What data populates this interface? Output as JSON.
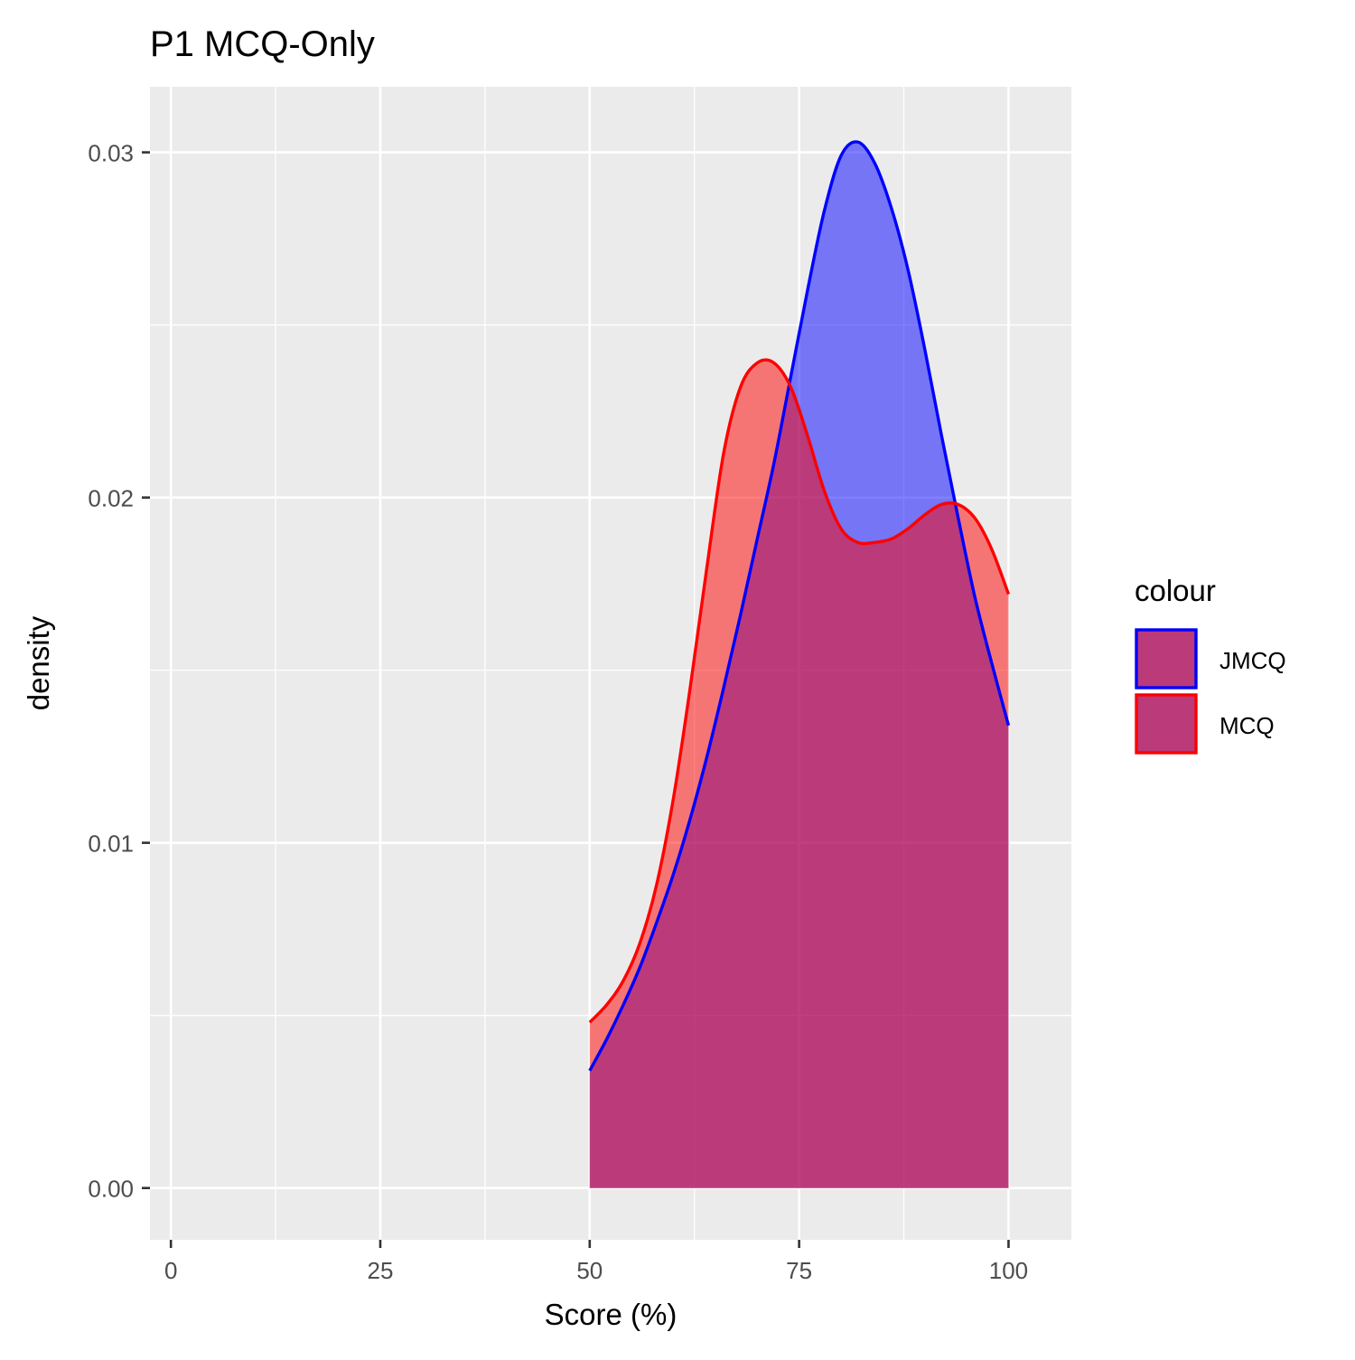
{
  "chart_data": {
    "type": "area",
    "title": "P1 MCQ-Only",
    "xlabel": "Score (%)",
    "ylabel": "density",
    "xlim": [
      -2.5,
      107.5
    ],
    "ylim": [
      -0.0015,
      0.0319
    ],
    "x_ticks": [
      0,
      25,
      50,
      75,
      100
    ],
    "x_tick_labels": [
      "0",
      "25",
      "50",
      "75",
      "100"
    ],
    "x_minor_ticks": [
      12.5,
      37.5,
      62.5,
      87.5
    ],
    "y_ticks": [
      0.0,
      0.01,
      0.02,
      0.03
    ],
    "y_tick_labels": [
      "0.00",
      "0.01",
      "0.02",
      "0.03"
    ],
    "y_minor_ticks": [
      0.005,
      0.015,
      0.025
    ],
    "grid": true,
    "legend": {
      "title": "colour",
      "position": "right"
    },
    "series": [
      {
        "name": "JMCQ",
        "outline_color": "#0000FF",
        "fill_color": "#0000FF",
        "fill_opacity": 0.5,
        "x": [
          50,
          52,
          54,
          56,
          58,
          60,
          62,
          64,
          66,
          68,
          70,
          72,
          74,
          76,
          78,
          80,
          82,
          84,
          86,
          88,
          90,
          92,
          94,
          96,
          98,
          100
        ],
        "y": [
          0.0034,
          0.0043,
          0.0053,
          0.0064,
          0.0077,
          0.0091,
          0.0107,
          0.0125,
          0.0145,
          0.0166,
          0.0188,
          0.021,
          0.0235,
          0.026,
          0.0283,
          0.0299,
          0.0303,
          0.0297,
          0.0284,
          0.0266,
          0.0243,
          0.0218,
          0.0194,
          0.0171,
          0.0152,
          0.0134
        ]
      },
      {
        "name": "MCQ",
        "outline_color": "#FF0000",
        "fill_color": "#FF0000",
        "fill_opacity": 0.5,
        "x": [
          50,
          52,
          54,
          56,
          58,
          60,
          62,
          64,
          66,
          68,
          70,
          72,
          74,
          76,
          78,
          80,
          82,
          84,
          86,
          88,
          90,
          92,
          94,
          96,
          98,
          100
        ],
        "y": [
          0.0048,
          0.0053,
          0.006,
          0.0071,
          0.0088,
          0.0113,
          0.0145,
          0.018,
          0.0213,
          0.0232,
          0.0239,
          0.0239,
          0.0232,
          0.0218,
          0.0202,
          0.0191,
          0.0187,
          0.0187,
          0.0188,
          0.0191,
          0.0195,
          0.0198,
          0.0198,
          0.0194,
          0.0185,
          0.0172
        ]
      }
    ]
  }
}
